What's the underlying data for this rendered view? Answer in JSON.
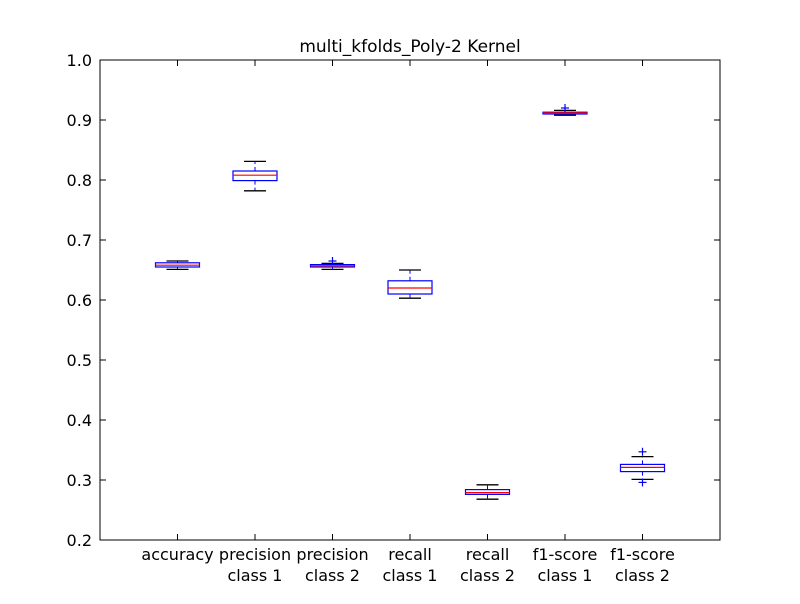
{
  "chart_data": {
    "type": "box",
    "title": "multi_kfolds_Poly-2 Kernel",
    "xlabel": "",
    "ylabel": "",
    "ylim": [
      0.2,
      1.0
    ],
    "yticks": [
      "0.2",
      "0.3",
      "0.4",
      "0.5",
      "0.6",
      "0.7",
      "0.8",
      "0.9",
      "1.0"
    ],
    "grid": false,
    "categories": [
      [
        "accuracy"
      ],
      [
        "precision",
        "class 1"
      ],
      [
        "precision",
        "class 2"
      ],
      [
        "recall",
        "class 1"
      ],
      [
        "recall",
        "class 2"
      ],
      [
        "f1-score",
        "class 1"
      ],
      [
        "f1-score",
        "class 2"
      ]
    ],
    "boxes": [
      {
        "whisker_low": 0.651,
        "q1": 0.655,
        "median": 0.658,
        "q3": 0.662,
        "whisker_high": 0.665,
        "outliers": []
      },
      {
        "whisker_low": 0.782,
        "q1": 0.799,
        "median": 0.808,
        "q3": 0.815,
        "whisker_high": 0.831,
        "outliers": []
      },
      {
        "whisker_low": 0.651,
        "q1": 0.655,
        "median": 0.657,
        "q3": 0.659,
        "whisker_high": 0.661,
        "outliers": [
          0.665
        ]
      },
      {
        "whisker_low": 0.603,
        "q1": 0.61,
        "median": 0.62,
        "q3": 0.632,
        "whisker_high": 0.65,
        "outliers": []
      },
      {
        "whisker_low": 0.268,
        "q1": 0.276,
        "median": 0.279,
        "q3": 0.284,
        "whisker_high": 0.292,
        "outliers": []
      },
      {
        "whisker_low": 0.908,
        "q1": 0.91,
        "median": 0.912,
        "q3": 0.913,
        "whisker_high": 0.916,
        "outliers": [
          0.92
        ]
      },
      {
        "whisker_low": 0.301,
        "q1": 0.314,
        "median": 0.321,
        "q3": 0.326,
        "whisker_high": 0.339,
        "outliers": [
          0.296,
          0.347
        ]
      }
    ],
    "colors": {
      "box": "#0000ff",
      "median": "#ff0000",
      "whisker": "#000000",
      "outlier": "#0000ff",
      "axes": "#000000"
    }
  }
}
